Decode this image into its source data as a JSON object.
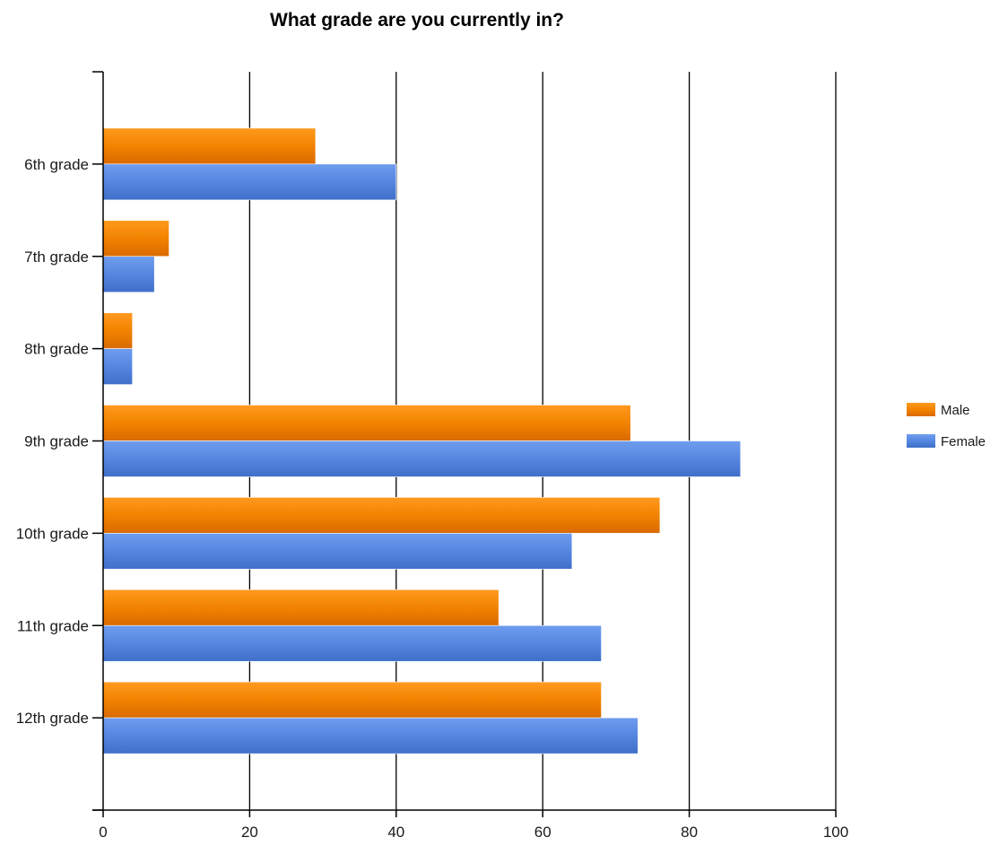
{
  "chart_data": {
    "type": "bar",
    "orientation": "horizontal",
    "title": "What grade are you currently in?",
    "xlabel": "",
    "ylabel": "",
    "categories": [
      "6th grade",
      "7th grade",
      "8th grade",
      "9th grade",
      "10th grade",
      "11th grade",
      "12th grade"
    ],
    "series": [
      {
        "name": "Male",
        "color": "#f08000",
        "values": [
          29,
          9,
          4,
          72,
          76,
          54,
          68
        ]
      },
      {
        "name": "Female",
        "color": "#5585dc",
        "values": [
          40,
          7,
          4,
          87,
          64,
          68,
          73
        ]
      }
    ],
    "xlim": [
      0,
      100
    ],
    "x_ticks": [
      0,
      20,
      40,
      60,
      80,
      100
    ],
    "grid": "vertical",
    "legend": "right"
  }
}
